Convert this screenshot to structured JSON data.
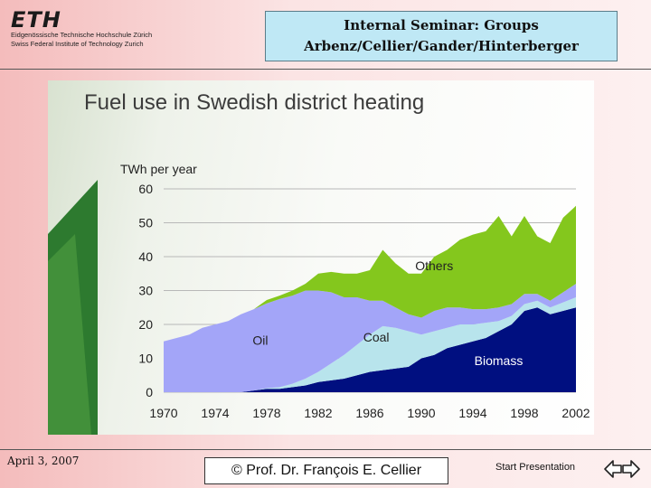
{
  "header": {
    "logo_text": "ETH",
    "institution_de": "Eidgenössische Technische Hochschule Zürich",
    "institution_en": "Swiss Federal Institute of Technology Zurich",
    "seminar_line1": "Internal Seminar: Groups",
    "seminar_line2": "Arbenz/Cellier/Gander/Hinterberger"
  },
  "footer": {
    "date": "April 3, 2007",
    "copyright": "© Prof. Dr. François E. Cellier",
    "start_label": "Start Presentation"
  },
  "colors": {
    "biomass": "#000f80",
    "coal": "#b8e4ec",
    "oil": "#a3a5f8",
    "others": "#84c71d",
    "title": "#3c3c3c"
  },
  "chart_data": {
    "type": "area",
    "stacked": true,
    "title": "Fuel use in Swedish district heating",
    "ylabel": "TWh per year",
    "xlabel": "",
    "ylim": [
      0,
      60
    ],
    "yticks": [
      0,
      10,
      20,
      30,
      40,
      50,
      60
    ],
    "xticks": [
      1970,
      1974,
      1978,
      1982,
      1986,
      1990,
      1994,
      1998,
      2002
    ],
    "grid": true,
    "x": [
      1970,
      1971,
      1972,
      1973,
      1974,
      1975,
      1976,
      1977,
      1978,
      1979,
      1980,
      1981,
      1982,
      1983,
      1984,
      1985,
      1986,
      1987,
      1988,
      1989,
      1990,
      1991,
      1992,
      1993,
      1994,
      1995,
      1996,
      1997,
      1998,
      1999,
      2000,
      2001,
      2002
    ],
    "series": [
      {
        "name": "Biomass",
        "label_position": [
          1996,
          8
        ],
        "values": [
          0,
          0,
          0,
          0,
          0,
          0,
          0,
          0.5,
          1,
          1,
          1.5,
          2,
          3,
          3.5,
          4,
          5,
          6,
          6.5,
          7,
          7.5,
          10,
          11,
          13,
          14,
          15,
          16,
          18,
          20,
          24,
          25,
          23,
          24,
          25
        ]
      },
      {
        "name": "Coal",
        "label_position": [
          1986.5,
          15
        ],
        "values": [
          0,
          0,
          0,
          0,
          0,
          0,
          0,
          0,
          0.2,
          0.5,
          1,
          2,
          3,
          5,
          7,
          9,
          11,
          13,
          12,
          10.5,
          7,
          7,
          6,
          6,
          5,
          4.5,
          3,
          2.5,
          2,
          2,
          2,
          2.5,
          3
        ]
      },
      {
        "name": "Oil",
        "label_position": [
          1977.5,
          14
        ],
        "values": [
          15,
          16,
          17,
          19,
          20,
          21,
          23,
          24,
          25,
          26,
          26,
          26,
          24,
          21,
          17,
          14,
          10,
          7.5,
          6,
          5,
          5,
          6,
          6,
          5,
          4.5,
          4,
          4,
          3.5,
          3,
          2,
          2,
          3,
          4
        ]
      },
      {
        "name": "Others",
        "label_position": [
          1991,
          36
        ],
        "values": [
          0,
          0,
          0,
          0,
          0,
          0,
          0,
          0,
          1,
          1,
          1.5,
          2,
          5,
          6,
          7,
          7,
          9,
          15,
          13,
          12,
          13,
          16,
          17,
          20,
          22,
          23,
          27,
          20,
          23,
          17,
          17,
          22,
          23
        ]
      }
    ]
  }
}
